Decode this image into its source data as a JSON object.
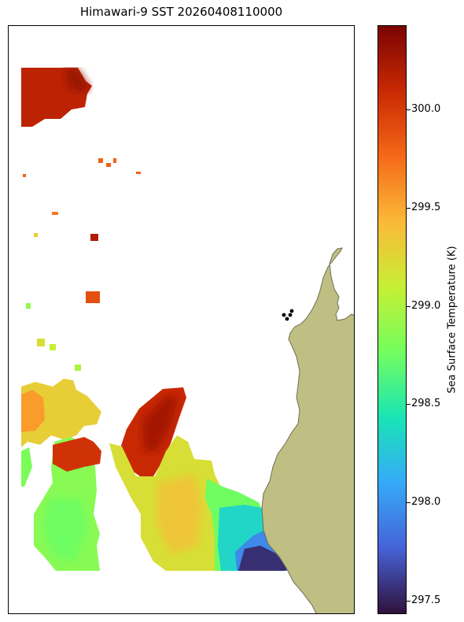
{
  "title": "Himawari-9 SST 20260408110000",
  "colorbar": {
    "label": "Sea Surface Temperature (K)",
    "min": 297.43,
    "max": 300.43,
    "ticks": [
      "297.5",
      "298.0",
      "298.5",
      "299.0",
      "299.5",
      "300.0"
    ],
    "colormap": "turbo",
    "stops": [
      "#30123b",
      "#4662d7",
      "#36aaf9",
      "#1ae4b6",
      "#72fe5e",
      "#c7ef34",
      "#fbb938",
      "#f56918",
      "#c92903",
      "#7a0403"
    ]
  },
  "land_color": "#bfbf84",
  "marker_color": "#000000"
}
